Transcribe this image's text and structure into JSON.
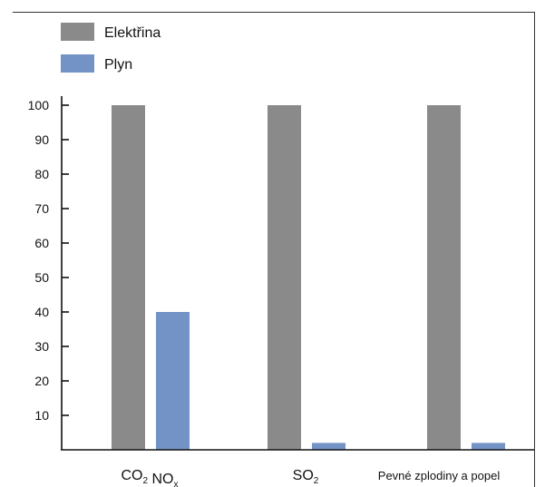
{
  "chart_data": {
    "type": "bar",
    "categories": [
      {
        "parts": [
          {
            "t": "CO"
          },
          {
            "t": "2",
            "sub": true
          },
          {
            "t": " NO"
          },
          {
            "t": "x",
            "sub": true
          }
        ]
      },
      {
        "parts": [
          {
            "t": "SO"
          },
          {
            "t": "2",
            "sub": true
          }
        ]
      },
      {
        "parts": [
          {
            "t": "Pevné zplodiny a popel"
          }
        ]
      }
    ],
    "series": [
      {
        "name": "Elektřina",
        "color": "#8a8a8a",
        "values": [
          100,
          100,
          100
        ]
      },
      {
        "name": "Plyn",
        "color": "#7393c6",
        "values": [
          40,
          2,
          2
        ]
      }
    ],
    "yticks": [
      10,
      20,
      30,
      40,
      50,
      60,
      70,
      80,
      90,
      100
    ],
    "ylim": [
      0,
      100
    ],
    "title": "",
    "xlabel": "",
    "ylabel": "",
    "legend_position": "top-left",
    "grid": false
  }
}
